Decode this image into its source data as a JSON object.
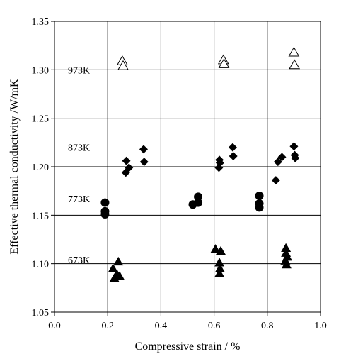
{
  "chart_data": {
    "type": "scatter",
    "title": "",
    "xlabel": "Compressive strain / %",
    "ylabel": "Effective thermal conductivity /W/mK",
    "xlim": [
      0.0,
      1.0
    ],
    "ylim": [
      1.05,
      1.35
    ],
    "x_ticks": [
      "0.0",
      "0.2",
      "0.4",
      "0.6",
      "0.8",
      "1.0"
    ],
    "y_ticks": [
      "1.05",
      "1.10",
      "1.15",
      "1.20",
      "1.25",
      "1.30",
      "1.35"
    ],
    "grid": true,
    "series": [
      {
        "name": "973K",
        "marker": "open-triangle",
        "points": [
          [
            0.255,
            1.309
          ],
          [
            0.258,
            1.304
          ],
          [
            0.635,
            1.31
          ],
          [
            0.637,
            1.306
          ],
          [
            0.9,
            1.318
          ],
          [
            0.902,
            1.305
          ]
        ]
      },
      {
        "name": "873K",
        "marker": "filled-diamond",
        "points": [
          [
            0.27,
            1.206
          ],
          [
            0.268,
            1.194
          ],
          [
            0.28,
            1.199
          ],
          [
            0.335,
            1.218
          ],
          [
            0.337,
            1.205
          ],
          [
            0.62,
            1.207
          ],
          [
            0.618,
            1.199
          ],
          [
            0.622,
            1.204
          ],
          [
            0.67,
            1.22
          ],
          [
            0.672,
            1.211
          ],
          [
            0.84,
            1.205
          ],
          [
            0.855,
            1.21
          ],
          [
            0.9,
            1.221
          ],
          [
            0.903,
            1.212
          ],
          [
            0.905,
            1.209
          ],
          [
            0.832,
            1.186
          ]
        ]
      },
      {
        "name": "773K",
        "marker": "filled-circle",
        "points": [
          [
            0.19,
            1.163
          ],
          [
            0.19,
            1.154
          ],
          [
            0.19,
            1.151
          ],
          [
            0.52,
            1.161
          ],
          [
            0.54,
            1.169
          ],
          [
            0.54,
            1.163
          ],
          [
            0.77,
            1.17
          ],
          [
            0.77,
            1.162
          ],
          [
            0.77,
            1.158
          ]
        ]
      },
      {
        "name": "673K",
        "marker": "filled-triangle",
        "points": [
          [
            0.24,
            1.102
          ],
          [
            0.22,
            1.095
          ],
          [
            0.235,
            1.089
          ],
          [
            0.225,
            1.085
          ],
          [
            0.245,
            1.087
          ],
          [
            0.605,
            1.115
          ],
          [
            0.625,
            1.113
          ],
          [
            0.62,
            1.101
          ],
          [
            0.622,
            1.095
          ],
          [
            0.62,
            1.09
          ],
          [
            0.87,
            1.116
          ],
          [
            0.87,
            1.111
          ],
          [
            0.875,
            1.107
          ],
          [
            0.868,
            1.103
          ],
          [
            0.872,
            1.099
          ]
        ]
      }
    ]
  }
}
